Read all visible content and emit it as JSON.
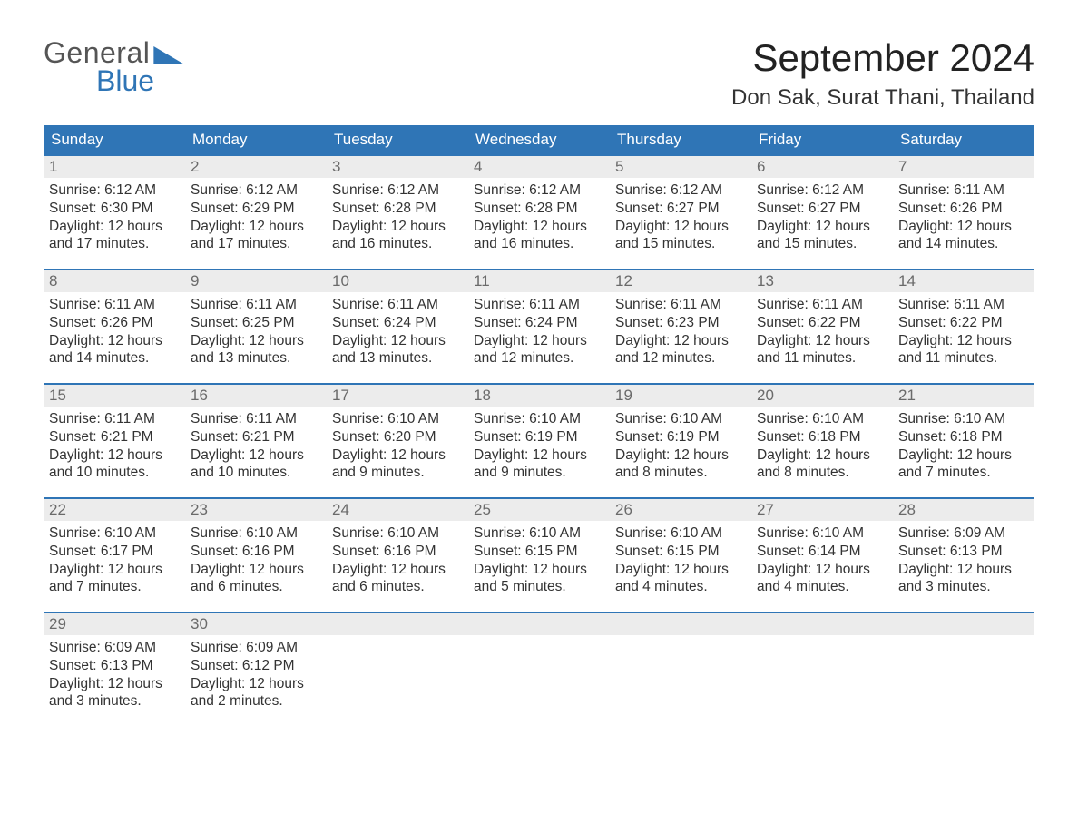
{
  "brand": {
    "word1": "General",
    "word2": "Blue"
  },
  "header": {
    "title": "September 2024",
    "location": "Don Sak, Surat Thani, Thailand"
  },
  "colors": {
    "accent": "#2f75b6",
    "header_bg": "#2f75b6",
    "header_text": "#ffffff",
    "daynum_bg": "#ececec",
    "daynum_text": "#6a6a6a",
    "body_text": "#333333",
    "page_bg": "#ffffff"
  },
  "typography": {
    "title_fontsize_pt": 32,
    "subtitle_fontsize_pt": 18,
    "th_fontsize_pt": 13,
    "cell_fontsize_pt": 12
  },
  "calendar": {
    "type": "table",
    "columns": [
      "Sunday",
      "Monday",
      "Tuesday",
      "Wednesday",
      "Thursday",
      "Friday",
      "Saturday"
    ],
    "start_day_index": 0,
    "days": [
      {
        "n": 1,
        "sunrise": "6:12 AM",
        "sunset": "6:30 PM",
        "daylight": "12 hours and 17 minutes."
      },
      {
        "n": 2,
        "sunrise": "6:12 AM",
        "sunset": "6:29 PM",
        "daylight": "12 hours and 17 minutes."
      },
      {
        "n": 3,
        "sunrise": "6:12 AM",
        "sunset": "6:28 PM",
        "daylight": "12 hours and 16 minutes."
      },
      {
        "n": 4,
        "sunrise": "6:12 AM",
        "sunset": "6:28 PM",
        "daylight": "12 hours and 16 minutes."
      },
      {
        "n": 5,
        "sunrise": "6:12 AM",
        "sunset": "6:27 PM",
        "daylight": "12 hours and 15 minutes."
      },
      {
        "n": 6,
        "sunrise": "6:12 AM",
        "sunset": "6:27 PM",
        "daylight": "12 hours and 15 minutes."
      },
      {
        "n": 7,
        "sunrise": "6:11 AM",
        "sunset": "6:26 PM",
        "daylight": "12 hours and 14 minutes."
      },
      {
        "n": 8,
        "sunrise": "6:11 AM",
        "sunset": "6:26 PM",
        "daylight": "12 hours and 14 minutes."
      },
      {
        "n": 9,
        "sunrise": "6:11 AM",
        "sunset": "6:25 PM",
        "daylight": "12 hours and 13 minutes."
      },
      {
        "n": 10,
        "sunrise": "6:11 AM",
        "sunset": "6:24 PM",
        "daylight": "12 hours and 13 minutes."
      },
      {
        "n": 11,
        "sunrise": "6:11 AM",
        "sunset": "6:24 PM",
        "daylight": "12 hours and 12 minutes."
      },
      {
        "n": 12,
        "sunrise": "6:11 AM",
        "sunset": "6:23 PM",
        "daylight": "12 hours and 12 minutes."
      },
      {
        "n": 13,
        "sunrise": "6:11 AM",
        "sunset": "6:22 PM",
        "daylight": "12 hours and 11 minutes."
      },
      {
        "n": 14,
        "sunrise": "6:11 AM",
        "sunset": "6:22 PM",
        "daylight": "12 hours and 11 minutes."
      },
      {
        "n": 15,
        "sunrise": "6:11 AM",
        "sunset": "6:21 PM",
        "daylight": "12 hours and 10 minutes."
      },
      {
        "n": 16,
        "sunrise": "6:11 AM",
        "sunset": "6:21 PM",
        "daylight": "12 hours and 10 minutes."
      },
      {
        "n": 17,
        "sunrise": "6:10 AM",
        "sunset": "6:20 PM",
        "daylight": "12 hours and 9 minutes."
      },
      {
        "n": 18,
        "sunrise": "6:10 AM",
        "sunset": "6:19 PM",
        "daylight": "12 hours and 9 minutes."
      },
      {
        "n": 19,
        "sunrise": "6:10 AM",
        "sunset": "6:19 PM",
        "daylight": "12 hours and 8 minutes."
      },
      {
        "n": 20,
        "sunrise": "6:10 AM",
        "sunset": "6:18 PM",
        "daylight": "12 hours and 8 minutes."
      },
      {
        "n": 21,
        "sunrise": "6:10 AM",
        "sunset": "6:18 PM",
        "daylight": "12 hours and 7 minutes."
      },
      {
        "n": 22,
        "sunrise": "6:10 AM",
        "sunset": "6:17 PM",
        "daylight": "12 hours and 7 minutes."
      },
      {
        "n": 23,
        "sunrise": "6:10 AM",
        "sunset": "6:16 PM",
        "daylight": "12 hours and 6 minutes."
      },
      {
        "n": 24,
        "sunrise": "6:10 AM",
        "sunset": "6:16 PM",
        "daylight": "12 hours and 6 minutes."
      },
      {
        "n": 25,
        "sunrise": "6:10 AM",
        "sunset": "6:15 PM",
        "daylight": "12 hours and 5 minutes."
      },
      {
        "n": 26,
        "sunrise": "6:10 AM",
        "sunset": "6:15 PM",
        "daylight": "12 hours and 4 minutes."
      },
      {
        "n": 27,
        "sunrise": "6:10 AM",
        "sunset": "6:14 PM",
        "daylight": "12 hours and 4 minutes."
      },
      {
        "n": 28,
        "sunrise": "6:09 AM",
        "sunset": "6:13 PM",
        "daylight": "12 hours and 3 minutes."
      },
      {
        "n": 29,
        "sunrise": "6:09 AM",
        "sunset": "6:13 PM",
        "daylight": "12 hours and 3 minutes."
      },
      {
        "n": 30,
        "sunrise": "6:09 AM",
        "sunset": "6:12 PM",
        "daylight": "12 hours and 2 minutes."
      }
    ],
    "labels": {
      "sunrise": "Sunrise:",
      "sunset": "Sunset:",
      "daylight": "Daylight:"
    }
  }
}
